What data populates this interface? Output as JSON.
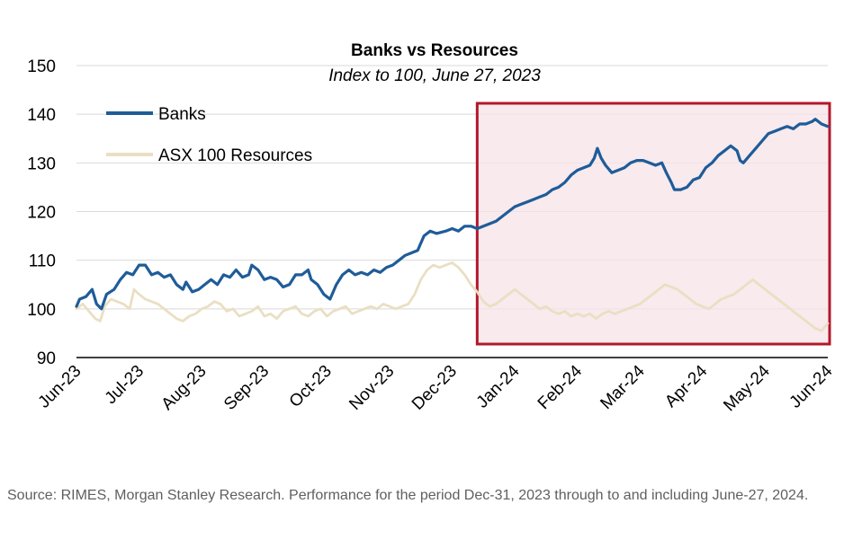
{
  "chart_data": {
    "type": "line",
    "title": "Banks vs Resources",
    "subtitle": "Index to 100, June 27, 2023",
    "xlabel": "",
    "ylabel": "",
    "ylim": [
      90,
      150
    ],
    "yticks": [
      90,
      100,
      110,
      120,
      130,
      140,
      150
    ],
    "grid": true,
    "legend_position": "top-left",
    "x_tick_labels": [
      "Jun-23",
      "Jul-23",
      "Aug-23",
      "Sep-23",
      "Oct-23",
      "Nov-23",
      "Dec-23",
      "Jan-24",
      "Feb-24",
      "Mar-24",
      "Apr-24",
      "May-24",
      "Jun-24"
    ],
    "highlight_region": {
      "x_start": 6.4,
      "x_end": 12.0,
      "label": "Dec-31, 2023 through to Jun-27, 2024"
    },
    "series": [
      {
        "name": "Banks",
        "color": "#1f5c99",
        "points": [
          [
            0.0,
            100.5
          ],
          [
            0.05,
            102
          ],
          [
            0.15,
            102.5
          ],
          [
            0.25,
            104
          ],
          [
            0.32,
            101
          ],
          [
            0.4,
            100
          ],
          [
            0.48,
            103
          ],
          [
            0.6,
            104
          ],
          [
            0.7,
            106
          ],
          [
            0.8,
            107.5
          ],
          [
            0.9,
            107
          ],
          [
            1.0,
            109
          ],
          [
            1.1,
            109
          ],
          [
            1.2,
            107
          ],
          [
            1.3,
            107.5
          ],
          [
            1.4,
            106.5
          ],
          [
            1.5,
            107
          ],
          [
            1.6,
            105
          ],
          [
            1.7,
            104
          ],
          [
            1.75,
            105.5
          ],
          [
            1.85,
            103.5
          ],
          [
            1.95,
            104
          ],
          [
            2.05,
            105
          ],
          [
            2.15,
            106
          ],
          [
            2.25,
            105
          ],
          [
            2.35,
            107
          ],
          [
            2.45,
            106.5
          ],
          [
            2.55,
            108
          ],
          [
            2.65,
            106.5
          ],
          [
            2.75,
            107
          ],
          [
            2.8,
            109
          ],
          [
            2.9,
            108
          ],
          [
            3.0,
            106
          ],
          [
            3.1,
            106.5
          ],
          [
            3.2,
            106
          ],
          [
            3.3,
            104.5
          ],
          [
            3.4,
            105
          ],
          [
            3.5,
            107
          ],
          [
            3.6,
            107
          ],
          [
            3.7,
            108
          ],
          [
            3.75,
            106
          ],
          [
            3.85,
            105
          ],
          [
            3.95,
            103
          ],
          [
            4.05,
            102
          ],
          [
            4.15,
            105
          ],
          [
            4.25,
            107
          ],
          [
            4.35,
            108
          ],
          [
            4.45,
            107
          ],
          [
            4.55,
            107.5
          ],
          [
            4.65,
            107
          ],
          [
            4.75,
            108
          ],
          [
            4.85,
            107.5
          ],
          [
            4.95,
            108.5
          ],
          [
            5.05,
            109
          ],
          [
            5.15,
            110
          ],
          [
            5.25,
            111
          ],
          [
            5.35,
            111.5
          ],
          [
            5.45,
            112
          ],
          [
            5.55,
            115
          ],
          [
            5.65,
            116
          ],
          [
            5.75,
            115.5
          ],
          [
            5.9,
            116
          ],
          [
            6.0,
            116.5
          ],
          [
            6.1,
            116
          ],
          [
            6.2,
            117
          ],
          [
            6.3,
            117
          ],
          [
            6.4,
            116.5
          ],
          [
            6.5,
            117
          ],
          [
            6.6,
            117.5
          ],
          [
            6.7,
            118
          ],
          [
            6.8,
            119
          ],
          [
            6.9,
            120
          ],
          [
            7.0,
            121
          ],
          [
            7.1,
            121.5
          ],
          [
            7.2,
            122
          ],
          [
            7.3,
            122.5
          ],
          [
            7.4,
            123
          ],
          [
            7.5,
            123.5
          ],
          [
            7.6,
            124.5
          ],
          [
            7.7,
            125
          ],
          [
            7.8,
            126
          ],
          [
            7.9,
            127.5
          ],
          [
            8.0,
            128.5
          ],
          [
            8.1,
            129
          ],
          [
            8.2,
            129.5
          ],
          [
            8.27,
            131
          ],
          [
            8.32,
            133
          ],
          [
            8.38,
            131
          ],
          [
            8.45,
            129.5
          ],
          [
            8.55,
            128
          ],
          [
            8.65,
            128.5
          ],
          [
            8.75,
            129
          ],
          [
            8.85,
            130
          ],
          [
            8.95,
            130.5
          ],
          [
            9.05,
            130.5
          ],
          [
            9.15,
            130
          ],
          [
            9.25,
            129.5
          ],
          [
            9.35,
            130
          ],
          [
            9.42,
            128
          ],
          [
            9.5,
            126
          ],
          [
            9.55,
            124.5
          ],
          [
            9.65,
            124.5
          ],
          [
            9.75,
            125
          ],
          [
            9.85,
            126.5
          ],
          [
            9.95,
            127
          ],
          [
            10.05,
            129
          ],
          [
            10.15,
            130
          ],
          [
            10.25,
            131.5
          ],
          [
            10.35,
            132.5
          ],
          [
            10.45,
            133.5
          ],
          [
            10.55,
            132.5
          ],
          [
            10.6,
            130.5
          ],
          [
            10.65,
            130
          ],
          [
            10.75,
            131.5
          ],
          [
            10.85,
            133
          ],
          [
            10.95,
            134.5
          ],
          [
            11.05,
            136
          ],
          [
            11.15,
            136.5
          ],
          [
            11.25,
            137
          ],
          [
            11.35,
            137.5
          ],
          [
            11.45,
            137
          ],
          [
            11.55,
            138
          ],
          [
            11.65,
            138
          ],
          [
            11.75,
            138.5
          ],
          [
            11.8,
            139
          ],
          [
            11.9,
            138
          ],
          [
            12.0,
            137.5
          ]
        ]
      },
      {
        "name": "ASX 100 Resources",
        "color": "#eadfc3",
        "points": [
          [
            0.0,
            100
          ],
          [
            0.1,
            101
          ],
          [
            0.2,
            99.5
          ],
          [
            0.3,
            98
          ],
          [
            0.38,
            97.5
          ],
          [
            0.45,
            100.5
          ],
          [
            0.55,
            102
          ],
          [
            0.65,
            101.5
          ],
          [
            0.75,
            101
          ],
          [
            0.85,
            100
          ],
          [
            0.92,
            104
          ],
          [
            1.0,
            103
          ],
          [
            1.1,
            102
          ],
          [
            1.2,
            101.5
          ],
          [
            1.3,
            101
          ],
          [
            1.4,
            100
          ],
          [
            1.5,
            99
          ],
          [
            1.6,
            98
          ],
          [
            1.7,
            97.5
          ],
          [
            1.8,
            98.5
          ],
          [
            1.9,
            99
          ],
          [
            2.0,
            100
          ],
          [
            2.1,
            100.5
          ],
          [
            2.2,
            101.5
          ],
          [
            2.3,
            101
          ],
          [
            2.4,
            99.5
          ],
          [
            2.5,
            100
          ],
          [
            2.6,
            98.5
          ],
          [
            2.7,
            99
          ],
          [
            2.8,
            99.5
          ],
          [
            2.9,
            100.5
          ],
          [
            3.0,
            98.5
          ],
          [
            3.1,
            99
          ],
          [
            3.2,
            98
          ],
          [
            3.3,
            99.5
          ],
          [
            3.4,
            100
          ],
          [
            3.5,
            100.5
          ],
          [
            3.6,
            99
          ],
          [
            3.7,
            98.5
          ],
          [
            3.8,
            99.5
          ],
          [
            3.9,
            100
          ],
          [
            4.0,
            98.5
          ],
          [
            4.1,
            99.5
          ],
          [
            4.2,
            100
          ],
          [
            4.3,
            100.5
          ],
          [
            4.4,
            99
          ],
          [
            4.5,
            99.5
          ],
          [
            4.6,
            100
          ],
          [
            4.7,
            100.5
          ],
          [
            4.8,
            100
          ],
          [
            4.9,
            101
          ],
          [
            5.0,
            100.5
          ],
          [
            5.1,
            100
          ],
          [
            5.2,
            100.5
          ],
          [
            5.3,
            101
          ],
          [
            5.4,
            103
          ],
          [
            5.5,
            106
          ],
          [
            5.6,
            108
          ],
          [
            5.7,
            109
          ],
          [
            5.8,
            108.5
          ],
          [
            5.9,
            109
          ],
          [
            6.0,
            109.5
          ],
          [
            6.1,
            108.5
          ],
          [
            6.2,
            107
          ],
          [
            6.3,
            105
          ],
          [
            6.4,
            103.5
          ],
          [
            6.5,
            101.5
          ],
          [
            6.6,
            100.5
          ],
          [
            6.7,
            101
          ],
          [
            6.8,
            102
          ],
          [
            6.9,
            103
          ],
          [
            7.0,
            104
          ],
          [
            7.1,
            103
          ],
          [
            7.2,
            102
          ],
          [
            7.3,
            101
          ],
          [
            7.4,
            100
          ],
          [
            7.5,
            100.5
          ],
          [
            7.6,
            99.5
          ],
          [
            7.7,
            99
          ],
          [
            7.8,
            99.5
          ],
          [
            7.9,
            98.5
          ],
          [
            8.0,
            99
          ],
          [
            8.1,
            98.5
          ],
          [
            8.2,
            99
          ],
          [
            8.3,
            98
          ],
          [
            8.4,
            99
          ],
          [
            8.5,
            99.5
          ],
          [
            8.6,
            99
          ],
          [
            8.7,
            99.5
          ],
          [
            8.8,
            100
          ],
          [
            8.9,
            100.5
          ],
          [
            9.0,
            101
          ],
          [
            9.1,
            102
          ],
          [
            9.2,
            103
          ],
          [
            9.3,
            104
          ],
          [
            9.4,
            105
          ],
          [
            9.5,
            104.5
          ],
          [
            9.6,
            104
          ],
          [
            9.7,
            103
          ],
          [
            9.8,
            102
          ],
          [
            9.9,
            101
          ],
          [
            10.0,
            100.5
          ],
          [
            10.1,
            100
          ],
          [
            10.2,
            101
          ],
          [
            10.3,
            102
          ],
          [
            10.4,
            102.5
          ],
          [
            10.5,
            103
          ],
          [
            10.6,
            104
          ],
          [
            10.7,
            105
          ],
          [
            10.8,
            106
          ],
          [
            10.9,
            105
          ],
          [
            11.0,
            104
          ],
          [
            11.1,
            103
          ],
          [
            11.2,
            102
          ],
          [
            11.3,
            101
          ],
          [
            11.4,
            100
          ],
          [
            11.5,
            99
          ],
          [
            11.6,
            98
          ],
          [
            11.7,
            97
          ],
          [
            11.8,
            96
          ],
          [
            11.9,
            95.5
          ],
          [
            12.0,
            97
          ]
        ]
      }
    ]
  },
  "source_note": "Source: RIMES, Morgan Stanley Research. Performance for the period Dec-31, 2023 through to and including June-27, 2024.",
  "colors": {
    "highlight_border": "#b2182b",
    "highlight_fill": "#f5e3e7",
    "grid": "#d9d9d9",
    "axis": "#000000"
  }
}
